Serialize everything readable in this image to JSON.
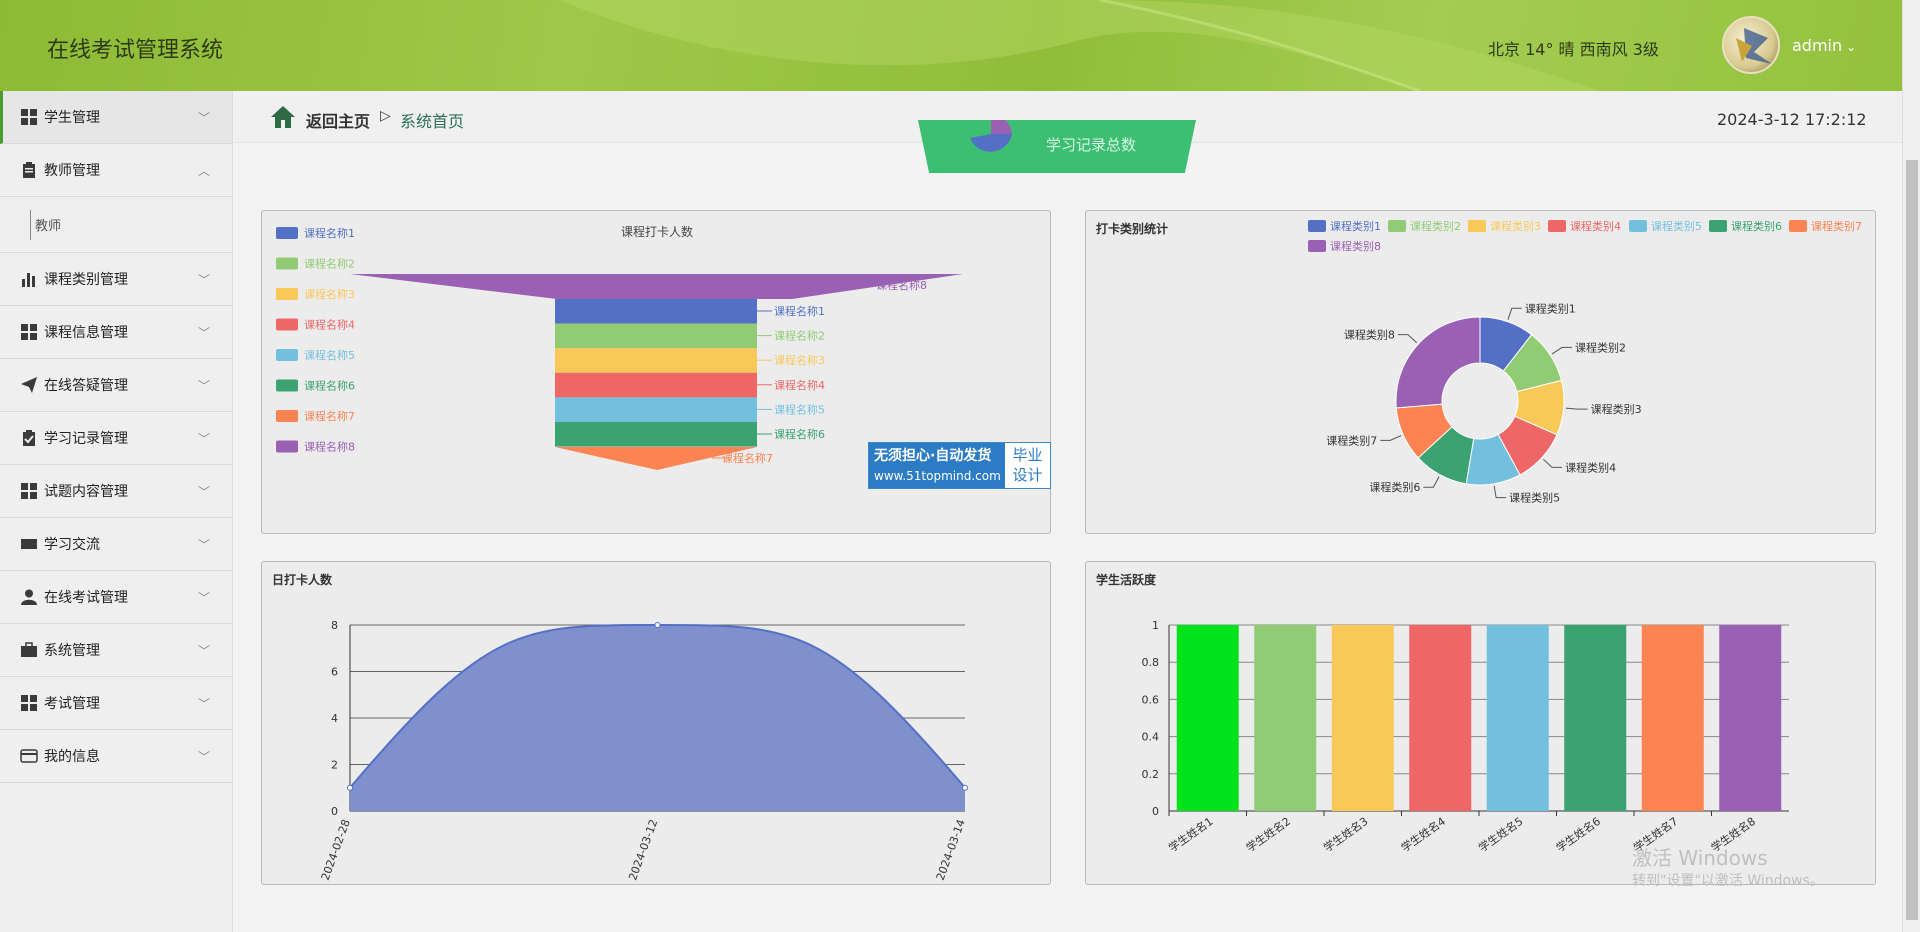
{
  "header": {
    "app_title": "在线考试管理系统",
    "weather": "北京  14°  晴  西南风  3级",
    "username": "admin",
    "user_chevron": "⌄"
  },
  "sidebar": {
    "items": [
      {
        "label": "学生管理",
        "icon": "grid-icon"
      },
      {
        "label": "教师管理",
        "icon": "clipboard-icon",
        "expanded": true,
        "sub": "教师"
      },
      {
        "label": "课程类别管理",
        "icon": "bar-chart-icon"
      },
      {
        "label": "课程信息管理",
        "icon": "grid-icon"
      },
      {
        "label": "在线答疑管理",
        "icon": "paper-plane-icon"
      },
      {
        "label": "学习记录管理",
        "icon": "check-clipboard-icon"
      },
      {
        "label": "试题内容管理",
        "icon": "grid-icon"
      },
      {
        "label": "学习交流",
        "icon": "ticket-icon"
      },
      {
        "label": "在线考试管理",
        "icon": "user-icon"
      },
      {
        "label": "系统管理",
        "icon": "briefcase-icon"
      },
      {
        "label": "考试管理",
        "icon": "grid-icon"
      },
      {
        "label": "我的信息",
        "icon": "card-icon"
      }
    ],
    "sub_label": "教师"
  },
  "breadcrumb": {
    "home": "返回主页",
    "separator": "▷",
    "current": "系统首页"
  },
  "datetime": "2024-3-12 17:2:12",
  "stat_tab": {
    "label": "学习记录总数"
  },
  "watermark": {
    "line1": "无须担心·自动发货",
    "line2": "www.51topmind.com",
    "right1": "毕业",
    "right2": "设计"
  },
  "activation": {
    "line1": "激活 Windows",
    "line2": "转到\"设置\"以激活 Windows。"
  },
  "colors": {
    "c1": "#5470c6",
    "c2": "#91cc75",
    "c3": "#fac858",
    "c4": "#ee6666",
    "c5": "#73c0de",
    "c6": "#3ba272",
    "c7": "#fc8452",
    "c8": "#9a60b4"
  },
  "chart_data": [
    {
      "type": "funnel",
      "title": "课程打卡人数",
      "legend_position": "left",
      "categories": [
        "课程名称1",
        "课程名称2",
        "课程名称3",
        "课程名称4",
        "课程名称5",
        "课程名称6",
        "课程名称7",
        "课程名称8"
      ],
      "values": [
        1,
        1,
        1,
        1,
        1,
        1,
        1,
        2
      ]
    },
    {
      "type": "pie",
      "title": "打卡类别统计",
      "legend_position": "top-right",
      "categories": [
        "课程类别1",
        "课程类别2",
        "课程类别3",
        "课程类别4",
        "课程类别5",
        "课程类别6",
        "课程类别7",
        "课程类别8"
      ],
      "values": [
        1,
        1,
        1,
        1,
        1,
        1,
        1,
        2.5
      ]
    },
    {
      "type": "area",
      "title": "日打卡人数",
      "x": [
        "2024-02-28",
        "2024-03-12",
        "2024-03-14"
      ],
      "y": [
        1,
        8,
        1
      ],
      "ylim": [
        0,
        8
      ],
      "yticks": [
        0,
        2,
        4,
        6,
        8
      ]
    },
    {
      "type": "bar",
      "title": "学生活跃度",
      "categories": [
        "学生姓名1",
        "学生姓名2",
        "学生姓名3",
        "学生姓名4",
        "学生姓名5",
        "学生姓名6",
        "学生姓名7",
        "学生姓名8"
      ],
      "values": [
        1,
        1,
        1,
        1,
        1,
        1,
        1,
        1
      ],
      "ylim": [
        0,
        1
      ],
      "yticks": [
        "0",
        "0.2",
        "0.4",
        "0.6",
        "0.8",
        "1"
      ],
      "bar_colors": [
        "#00e31a",
        "#91cc75",
        "#fac858",
        "#ee6666",
        "#73c0de",
        "#3ba272",
        "#fc8452",
        "#9a60b4"
      ]
    }
  ]
}
